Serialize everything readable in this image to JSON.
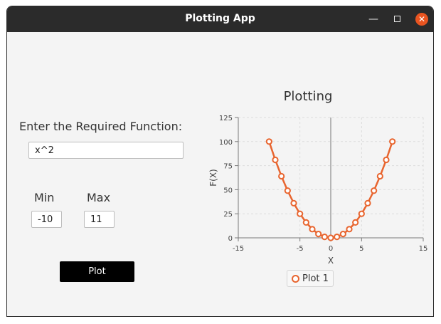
{
  "window": {
    "title": "Plotting App"
  },
  "form": {
    "prompt_label": "Enter the Required Function:",
    "function_value": "x^2",
    "min_label": "Min",
    "max_label": "Max",
    "min_value": "-10",
    "max_value": "11",
    "plot_button_label": "Plot"
  },
  "chart_data": {
    "type": "line",
    "title": "Plotting",
    "xlabel": "X",
    "ylabel": "F(X)",
    "xlim": [
      -15,
      15
    ],
    "ylim": [
      0,
      125
    ],
    "x_ticks": [
      -15,
      -5,
      0,
      5,
      15
    ],
    "y_ticks": [
      0,
      25,
      50,
      75,
      100,
      125
    ],
    "grid": true,
    "legend_position": "bottom-center",
    "series": [
      {
        "name": "Plot 1",
        "color": "#e8652f",
        "x": [
          -10,
          -9,
          -8,
          -7,
          -6,
          -5,
          -4,
          -3,
          -2,
          -1,
          0,
          1,
          2,
          3,
          4,
          5,
          6,
          7,
          8,
          9,
          10
        ],
        "y": [
          100,
          81,
          64,
          49,
          36,
          25,
          16,
          9,
          4,
          1,
          0,
          1,
          4,
          9,
          16,
          25,
          36,
          49,
          64,
          81,
          100
        ]
      }
    ]
  }
}
